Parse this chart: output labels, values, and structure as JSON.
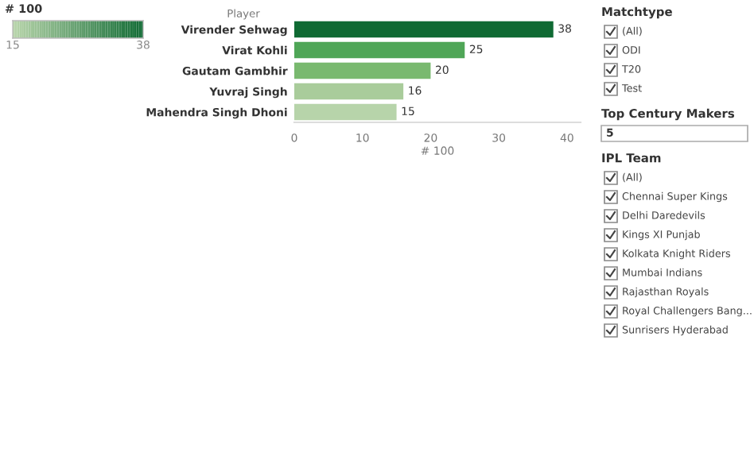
{
  "chart_data": [
    {
      "type": "bar",
      "orientation": "horizontal",
      "ylabel": "Player",
      "xlabel": "# 100",
      "categories": [
        "Virender Sehwag",
        "Virat Kohli",
        "Gautam Gambhir",
        "Yuvraj Singh",
        "Mahendra Singh Dhoni"
      ],
      "values": [
        38,
        25,
        20,
        16,
        15
      ],
      "colors": [
        "#0f6a33",
        "#4fa657",
        "#79b96f",
        "#a9cc9b",
        "#b7d4aa"
      ],
      "data_labels": true,
      "xlim": [
        0,
        42
      ],
      "xticks": [
        0,
        10,
        20,
        30,
        40
      ],
      "grid": false,
      "clabel": "# 100",
      "clim": [
        15,
        38
      ],
      "cticks": [
        15,
        38
      ]
    },
    {
      "type": "other",
      "title": "Matchtype",
      "annotations": [
        "(All)",
        "ODI",
        "T20",
        "Test"
      ]
    },
    {
      "type": "other",
      "title": "Top Century Makers",
      "annotations": [
        "5"
      ]
    },
    {
      "type": "other",
      "title": "IPL Team",
      "annotations": [
        "(All)",
        "Chennai Super Kings",
        "Delhi Daredevils",
        "Kings XI Punjab",
        "Kolkata Knight Riders",
        "Mumbai Indians",
        "Rajasthan Royals",
        "Royal Challengers Bang...",
        "Sunrisers Hyderabad"
      ]
    }
  ]
}
